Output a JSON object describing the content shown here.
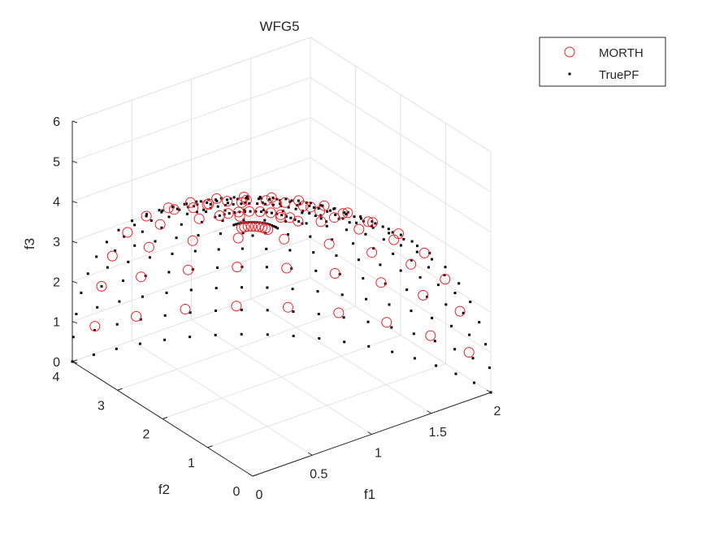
{
  "chart_data": {
    "type": "scatter",
    "projection": "3d",
    "title": "WFG5",
    "xlabel": "f1",
    "ylabel": "f2",
    "zlabel": "f3",
    "xlim": [
      0,
      2
    ],
    "ylim": [
      0,
      4
    ],
    "zlim": [
      0,
      6
    ],
    "xticks": [
      "0",
      "0.5",
      "1",
      "1.5",
      "2"
    ],
    "yticks": [
      "0",
      "1",
      "2",
      "3",
      "4"
    ],
    "zticks": [
      "0",
      "1",
      "2",
      "3",
      "4",
      "5",
      "6"
    ],
    "grid": true,
    "legend_position": "top-right",
    "surface": "ellipsoid (f1/2)^2 + (f2/4)^2 + (f3/6)^2 = 1, first octant",
    "series": [
      {
        "name": "MORTH",
        "marker": "open-circle",
        "color": "#e8232a",
        "angular_grid": {
          "elevation_deg": [
            7,
            18,
            28,
            38,
            48,
            58,
            68,
            78,
            86
          ],
          "azimuth_deg": [
            6,
            16,
            26,
            36,
            46,
            56,
            66,
            76,
            85
          ]
        }
      },
      {
        "name": "TruePF",
        "marker": "dot",
        "color": "#000000",
        "angular_grid": {
          "elevation_deg": [
            0,
            6,
            12,
            18,
            24,
            30,
            36,
            42,
            48,
            54,
            60,
            66,
            72,
            78,
            84,
            90
          ],
          "azimuth_deg": [
            0,
            5,
            10,
            15,
            20,
            25,
            30,
            35,
            40,
            45,
            50,
            55,
            60,
            65,
            70,
            75,
            80,
            85,
            90
          ]
        }
      }
    ]
  }
}
